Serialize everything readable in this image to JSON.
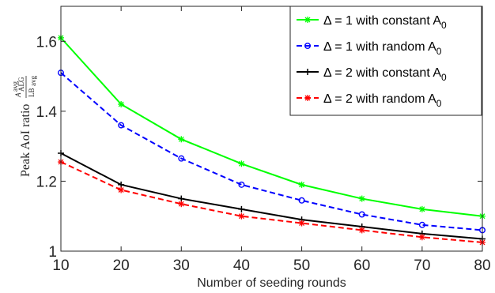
{
  "chart_data": {
    "type": "line",
    "xlabel": "Number of seeding rounds",
    "ylabel": {
      "main": "Peak AoI ratio",
      "numerator": "A",
      "numerator_sup": "avg",
      "numerator_sub": "ALG",
      "denominator": "LB",
      "denominator_sub": "avg"
    },
    "x": [
      10,
      20,
      30,
      40,
      50,
      60,
      70,
      80
    ],
    "xticks": [
      "10",
      "20",
      "30",
      "40",
      "50",
      "60",
      "70",
      "80"
    ],
    "yticks": [
      "1",
      "1.2",
      "1.4",
      "1.6"
    ],
    "xlim": [
      10,
      80
    ],
    "ylim": [
      1.0,
      1.7
    ],
    "grid": false,
    "legend_position": "top-right",
    "series": [
      {
        "name_prefix": "Δ = 1 with constant A",
        "name_sub": "0",
        "color": "#00ff00",
        "marker": "asterisk",
        "dash": "solid",
        "values": [
          1.61,
          1.42,
          1.32,
          1.25,
          1.19,
          1.15,
          1.12,
          1.1
        ]
      },
      {
        "name_prefix": "Δ = 1 with random A",
        "name_sub": "0",
        "color": "#0000ff",
        "marker": "circle",
        "dash": "dashed",
        "values": [
          1.51,
          1.36,
          1.265,
          1.19,
          1.145,
          1.105,
          1.075,
          1.06
        ]
      },
      {
        "name_prefix": "Δ = 2 with constant A",
        "name_sub": "0",
        "color": "#000000",
        "marker": "plus",
        "dash": "solid",
        "values": [
          1.28,
          1.19,
          1.15,
          1.12,
          1.09,
          1.07,
          1.05,
          1.035
        ]
      },
      {
        "name_prefix": "Δ = 2 with random A",
        "name_sub": "0",
        "color": "#ff0000",
        "marker": "asterisk",
        "dash": "dashed",
        "values": [
          1.255,
          1.175,
          1.135,
          1.1,
          1.08,
          1.06,
          1.04,
          1.025
        ]
      }
    ]
  }
}
